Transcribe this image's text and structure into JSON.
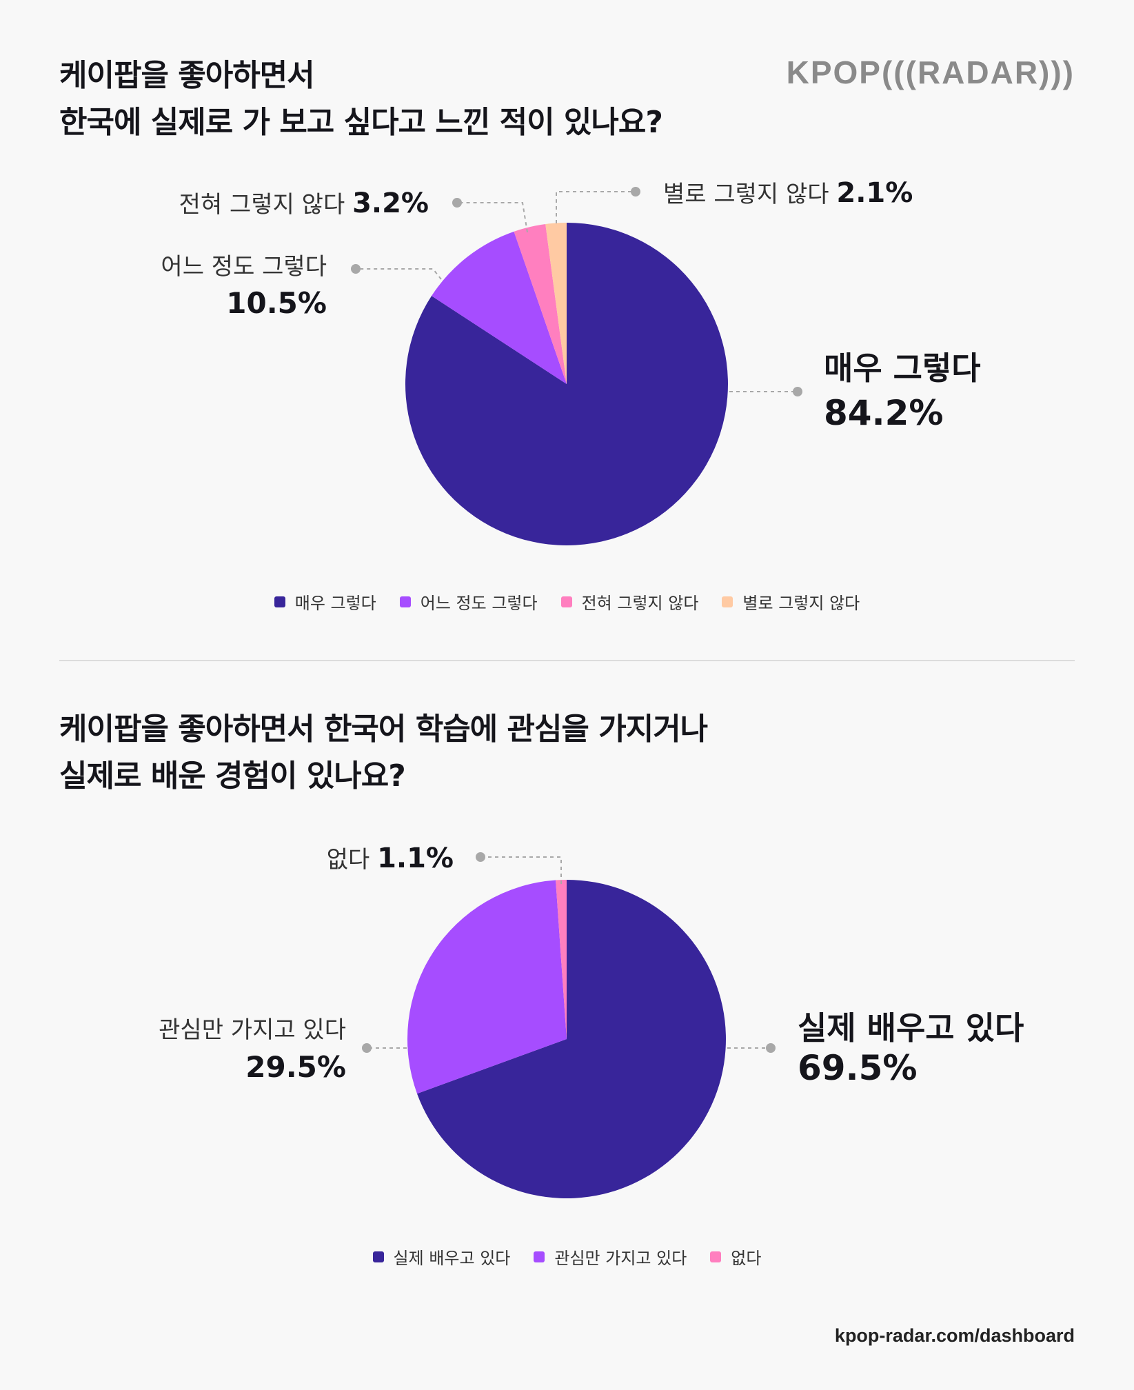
{
  "logo": "KPOP(((RADAR)))",
  "footer": "kpop-radar.com/dashboard",
  "chart_data": [
    {
      "type": "pie",
      "title_lines": [
        "케이팝을 좋아하면서",
        "한국에 실제로 가 보고 싶다고 느낀 적이 있나요?"
      ],
      "unit": "%",
      "slices": [
        {
          "label": "매우 그렇다",
          "value": 84.2,
          "color": "#38259a"
        },
        {
          "label": "어느 정도 그렇다",
          "value": 10.5,
          "color": "#a64dff"
        },
        {
          "label": "전혀 그렇지 않다",
          "value": 3.2,
          "color": "#ff7fbf"
        },
        {
          "label": "별로 그렇지 않다",
          "value": 2.1,
          "color": "#ffcaa3"
        }
      ],
      "legend": [
        "매우 그렇다",
        "어느 정도 그렇다",
        "전혀 그렇지 않다",
        "별로 그렇지 않다"
      ]
    },
    {
      "type": "pie",
      "title_lines": [
        "케이팝을 좋아하면서 한국어 학습에 관심을 가지거나",
        "실제로 배운 경험이 있나요?"
      ],
      "unit": "%",
      "slices": [
        {
          "label": "실제 배우고 있다",
          "value": 69.5,
          "color": "#38259a"
        },
        {
          "label": "관심만 가지고 있다",
          "value": 29.5,
          "color": "#a64dff"
        },
        {
          "label": "없다",
          "value": 1.1,
          "color": "#ff7fbf"
        }
      ],
      "legend": [
        "실제 배우고 있다",
        "관심만 가지고 있다",
        "없다"
      ]
    }
  ]
}
